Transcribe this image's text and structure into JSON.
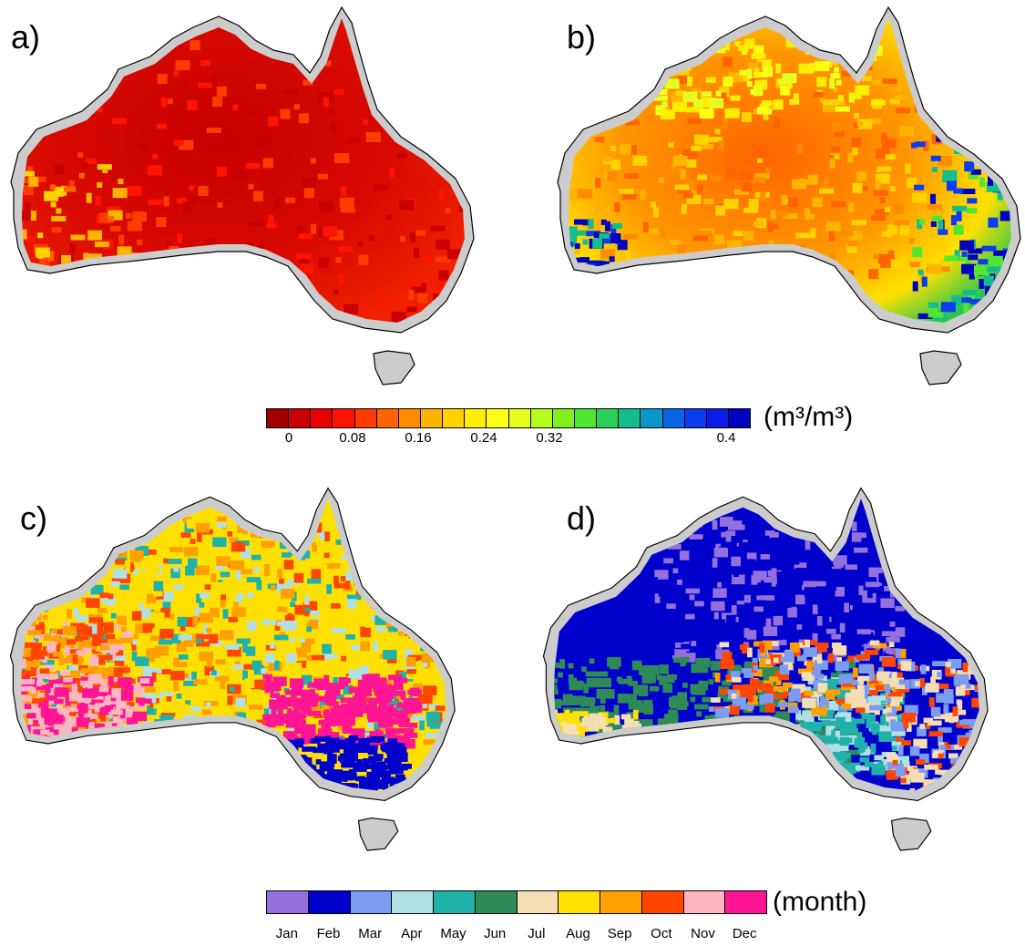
{
  "panels": [
    {
      "label": "a)"
    },
    {
      "label": "b)"
    },
    {
      "label": "c)"
    },
    {
      "label": "d)"
    }
  ],
  "moisture_colorbar": {
    "units_label": "(m³/m³)",
    "ticks": [
      "0",
      "0.08",
      "0.16",
      "0.24",
      "0.32",
      "0.4"
    ],
    "colors": [
      "#a00000",
      "#c80000",
      "#e60000",
      "#ff1400",
      "#ff3c00",
      "#ff6400",
      "#ff8c00",
      "#ffb400",
      "#ffd200",
      "#ffee00",
      "#ffff14",
      "#e6ff1e",
      "#b4ff1e",
      "#82f01e",
      "#50e632",
      "#28d25a",
      "#14be8c",
      "#0a96c8",
      "#0a64e6",
      "#0a3cf0",
      "#0a1ee6",
      "#0000c0"
    ]
  },
  "month_colorbar": {
    "units_label": "(month)",
    "months": [
      "Jan",
      "Feb",
      "Mar",
      "Apr",
      "May",
      "Jun",
      "Jul",
      "Aug",
      "Sep",
      "Oct",
      "Nov",
      "Dec"
    ],
    "colors": [
      "#9370db",
      "#0000cd",
      "#7b9cf0",
      "#b0e0e6",
      "#20b2aa",
      "#2e8b57",
      "#f5deb3",
      "#ffe000",
      "#ffa000",
      "#ff4500",
      "#ffb6c1",
      "#ff1493"
    ]
  },
  "land_mask_color": "#cccccc"
}
